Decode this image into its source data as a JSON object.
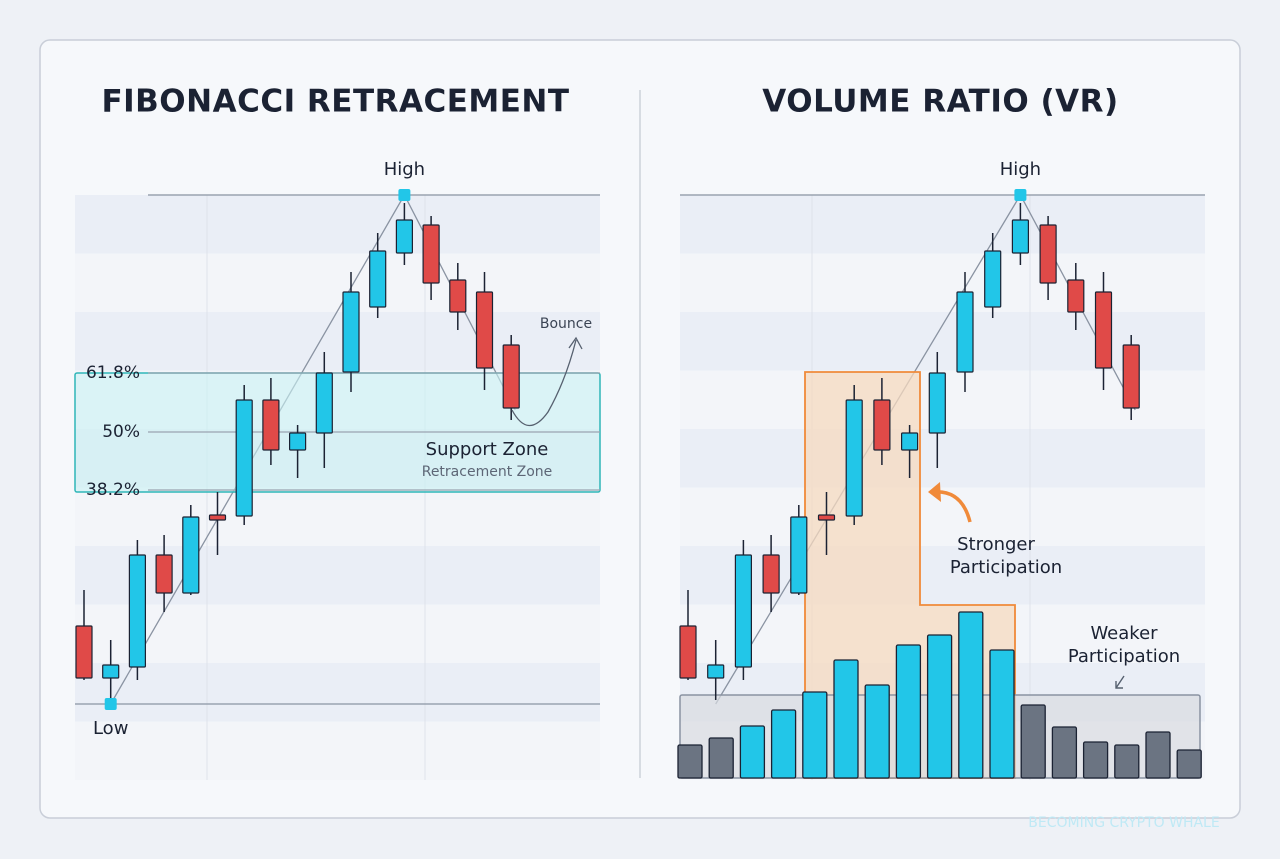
{
  "watermark": "BECOMING CRYPTO WHALE",
  "chart_data": [
    {
      "type": "candlestick",
      "title": "FIBONACCI RETRACEMENT",
      "ylim": [
        0,
        600
      ],
      "up_color": "#22c6e8",
      "down_color": "#e04a48",
      "candles": [
        {
          "open": 154,
          "high": 190,
          "low": 100,
          "close": 102
        },
        {
          "open": 102,
          "high": 140,
          "low": 80,
          "close": 115
        },
        {
          "open": 113,
          "high": 240,
          "low": 100,
          "close": 225
        },
        {
          "open": 225,
          "high": 245,
          "low": 168,
          "close": 187
        },
        {
          "open": 187,
          "high": 275,
          "low": 185,
          "close": 263
        },
        {
          "open": 265,
          "high": 288,
          "low": 225,
          "close": 260
        },
        {
          "open": 264,
          "high": 395,
          "low": 255,
          "close": 380
        },
        {
          "open": 380,
          "high": 402,
          "low": 315,
          "close": 330
        },
        {
          "open": 330,
          "high": 355,
          "low": 302,
          "close": 347
        },
        {
          "open": 347,
          "high": 428,
          "low": 312,
          "close": 407
        },
        {
          "open": 408,
          "high": 508,
          "low": 388,
          "close": 488
        },
        {
          "open": 473,
          "high": 547,
          "low": 462,
          "close": 529
        },
        {
          "open": 527,
          "high": 577,
          "low": 515,
          "close": 560
        },
        {
          "open": 555,
          "high": 564,
          "low": 480,
          "close": 497
        },
        {
          "open": 500,
          "high": 517,
          "low": 450,
          "close": 468
        },
        {
          "open": 488,
          "high": 508,
          "low": 390,
          "close": 412
        },
        {
          "open": 435,
          "high": 445,
          "low": 360,
          "close": 372
        }
      ],
      "levels": [
        {
          "value": 407,
          "label": "61.8%"
        },
        {
          "value": 348,
          "label": "50%"
        },
        {
          "value": 290,
          "label": "38.2%"
        }
      ],
      "annotations": {
        "high": "High",
        "low": "Low",
        "bounce": "Bounce",
        "zone": "Support Zone",
        "zone_sub": "Retracement Zone"
      }
    },
    {
      "type": "candlestick-volume",
      "title": "VOLUME RATIO (VR)",
      "ylim": [
        0,
        600
      ],
      "up_color": "#22c6e8",
      "down_color": "#e04a48",
      "candles": [
        {
          "open": 154,
          "high": 190,
          "low": 100,
          "close": 102
        },
        {
          "open": 102,
          "high": 140,
          "low": 80,
          "close": 115
        },
        {
          "open": 113,
          "high": 240,
          "low": 100,
          "close": 225
        },
        {
          "open": 225,
          "high": 245,
          "low": 168,
          "close": 187
        },
        {
          "open": 187,
          "high": 275,
          "low": 185,
          "close": 263
        },
        {
          "open": 265,
          "high": 288,
          "low": 225,
          "close": 260
        },
        {
          "open": 264,
          "high": 395,
          "low": 255,
          "close": 380
        },
        {
          "open": 380,
          "high": 402,
          "low": 315,
          "close": 330
        },
        {
          "open": 330,
          "high": 355,
          "low": 302,
          "close": 347
        },
        {
          "open": 347,
          "high": 428,
          "low": 312,
          "close": 407
        },
        {
          "open": 408,
          "high": 508,
          "low": 388,
          "close": 488
        },
        {
          "open": 473,
          "high": 547,
          "low": 462,
          "close": 529
        },
        {
          "open": 527,
          "high": 577,
          "low": 515,
          "close": 560
        },
        {
          "open": 555,
          "high": 564,
          "low": 480,
          "close": 497
        },
        {
          "open": 500,
          "high": 517,
          "low": 450,
          "close": 468
        },
        {
          "open": 488,
          "high": 508,
          "low": 390,
          "close": 412
        },
        {
          "open": 435,
          "high": 445,
          "low": 360,
          "close": 372
        }
      ],
      "volume": [
        33,
        40,
        52,
        68,
        86,
        118,
        93,
        133,
        143,
        166,
        128,
        73,
        51,
        36,
        33,
        46,
        28
      ],
      "volume_colors": [
        "#6b7482",
        "#6b7482",
        "#22c6e8",
        "#22c6e8",
        "#22c6e8",
        "#22c6e8",
        "#22c6e8",
        "#22c6e8",
        "#22c6e8",
        "#22c6e8",
        "#22c6e8",
        "#6b7482",
        "#6b7482",
        "#6b7482",
        "#6b7482",
        "#6b7482",
        "#6b7482"
      ],
      "annotations": {
        "high": "High",
        "strong": [
          "Stronger",
          "Participation"
        ],
        "weak": [
          "Weaker",
          "Participation"
        ]
      }
    }
  ]
}
